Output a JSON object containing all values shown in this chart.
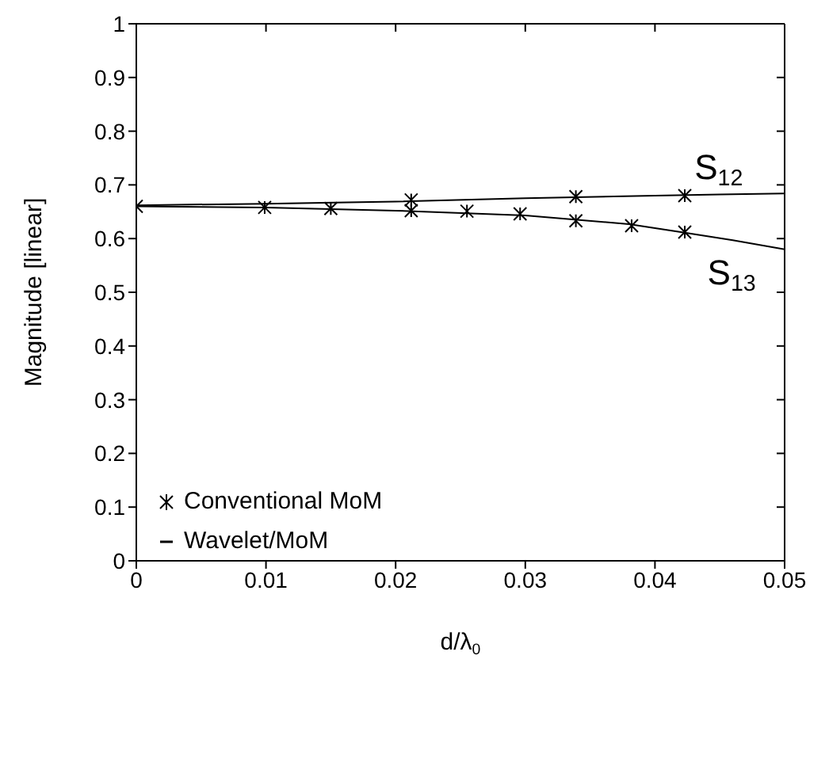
{
  "chart_data": {
    "type": "line",
    "xlabel": "d/λ$_{0}$",
    "ylabel": "Magnitude [linear]",
    "xlim": [
      0,
      0.05
    ],
    "xticks": [
      0,
      0.01,
      0.02,
      0.03,
      0.04,
      0.05
    ],
    "ylim": [
      0,
      1
    ],
    "yticks": [
      0,
      0.1,
      0.2,
      0.3,
      0.4,
      0.5,
      0.6,
      0.7,
      0.8,
      0.9,
      1
    ],
    "grid": false,
    "legend": "bottom left",
    "line_style": "solid",
    "series": [
      {
        "name": "Conventional MoM",
        "type": "scatter",
        "marker": "cross",
        "color": "#000000",
        "x": [
          0,
          0.0099,
          0.015,
          0.0212,
          0.0255,
          0.0296,
          0.0339,
          0.0382,
          0.0423,
          0.0212,
          0.0339,
          0.0423
        ],
        "values": [
          0.66,
          0.658,
          0.656,
          0.652,
          0.651,
          0.646,
          0.633,
          0.624,
          0.612,
          0.672,
          0.678,
          0.68
        ]
      },
      {
        "name": "Wavelet/MoM",
        "marker": "none",
        "color": "#000000",
        "x": [
          0,
          0.01,
          0.02,
          0.03,
          0.04,
          0.045,
          0.05
        ],
        "values": [
          0.662,
          0.665,
          0.669,
          0.675,
          0.68,
          0.682,
          0.684
        ]
      },
      {
        "marker": "none",
        "color": "#000000",
        "x": [
          0,
          0.01,
          0.02,
          0.03,
          0.038,
          0.042,
          0.046,
          0.05
        ],
        "values": [
          0.66,
          0.658,
          0.652,
          0.643,
          0.627,
          0.612,
          0.597,
          0.58
        ]
      }
    ],
    "annotations": [
      {
        "text": "S$_{12}$",
        "x": 0.045,
        "y": 0.682
      },
      {
        "text": "S$_{13}$",
        "x": 0.046,
        "y": 0.597
      }
    ]
  }
}
